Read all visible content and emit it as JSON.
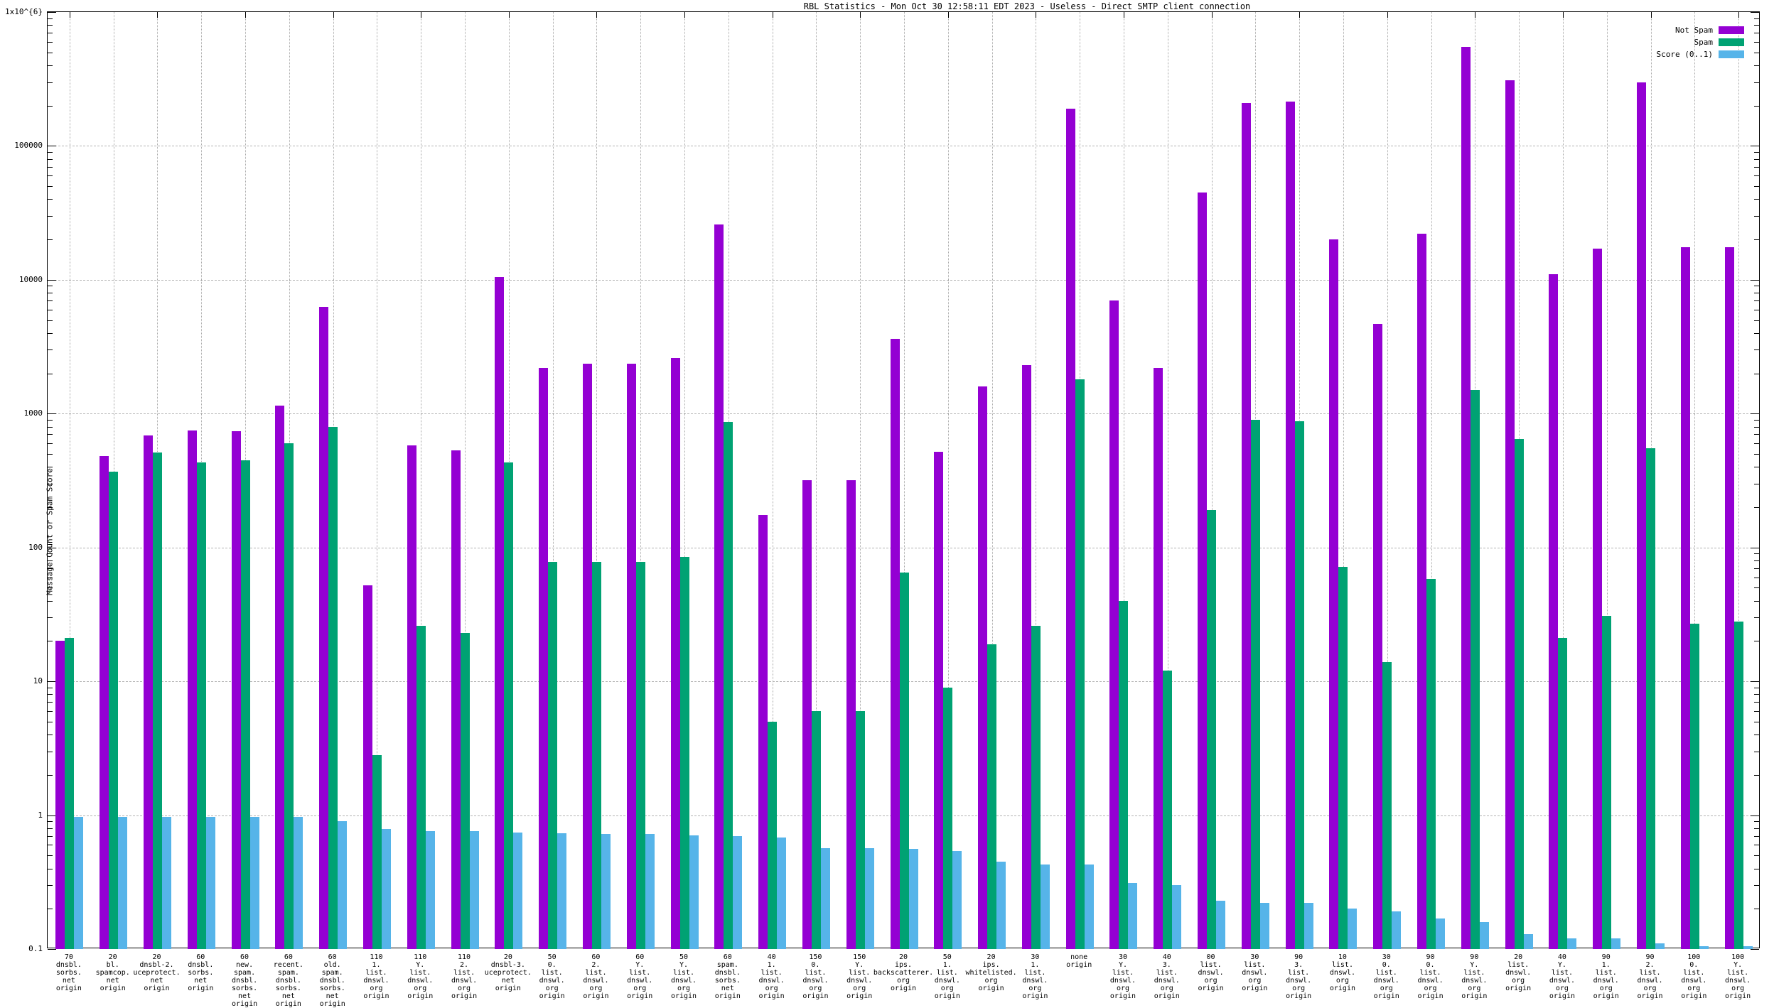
{
  "title": "RBL Statistics - Mon Oct 30 12:58:11 EDT 2023 - Useless - Direct SMTP client connection",
  "y_axis": {
    "label": "Message Count or Spam Score",
    "scale": "log",
    "min": 0.1,
    "max": 1000000,
    "tick_labels": [
      "0.1",
      "1",
      "10",
      "100",
      "1000",
      "10000",
      "100000",
      "1x10^{6}"
    ]
  },
  "legend": {
    "position": "top-right",
    "entries": [
      {
        "label": "Not Spam",
        "color": "#9400d3"
      },
      {
        "label": "Spam",
        "color": "#00a273"
      },
      {
        "label": "Score (0..1)",
        "color": "#56b4e9"
      }
    ]
  },
  "chart_data": {
    "type": "bar",
    "title": "RBL Statistics - Mon Oct 30 12:58:11 EDT 2023 - Useless - Direct SMTP client connection",
    "xlabel": "",
    "ylabel": "Message Count or Spam Score",
    "yscale": "log",
    "ylim": [
      0.1,
      1000000
    ],
    "grid": true,
    "legend_position": "top-right",
    "categories": [
      [
        "70",
        "dnsbl.",
        "sorbs.",
        "net",
        "origin"
      ],
      [
        "20",
        "bl.",
        "spamcop.",
        "net",
        "origin"
      ],
      [
        "20",
        "dnsbl-2.",
        "uceprotect.",
        "net",
        "origin"
      ],
      [
        "60",
        "dnsbl.",
        "sorbs.",
        "net",
        "origin"
      ],
      [
        "60",
        "new.",
        "spam.",
        "dnsbl.",
        "sorbs.",
        "net",
        "origin"
      ],
      [
        "60",
        "recent.",
        "spam.",
        "dnsbl.",
        "sorbs.",
        "net",
        "origin"
      ],
      [
        "60",
        "old.",
        "spam.",
        "dnsbl.",
        "sorbs.",
        "net",
        "origin"
      ],
      [
        "110",
        "1.",
        "list.",
        "dnswl.",
        "org",
        "origin"
      ],
      [
        "110",
        "Y.",
        "list.",
        "dnswl.",
        "org",
        "origin"
      ],
      [
        "110",
        "2.",
        "list.",
        "dnswl.",
        "org",
        "origin"
      ],
      [
        "20",
        "dnsbl-3.",
        "uceprotect.",
        "net",
        "origin"
      ],
      [
        "50",
        "0.",
        "list.",
        "dnswl.",
        "org",
        "origin"
      ],
      [
        "60",
        "2.",
        "list.",
        "dnswl.",
        "org",
        "origin"
      ],
      [
        "60",
        "Y.",
        "list.",
        "dnswl.",
        "org",
        "origin"
      ],
      [
        "50",
        "Y.",
        "list.",
        "dnswl.",
        "org",
        "origin"
      ],
      [
        "60",
        "spam.",
        "dnsbl.",
        "sorbs.",
        "net",
        "origin"
      ],
      [
        "40",
        "1.",
        "list.",
        "dnswl.",
        "org",
        "origin"
      ],
      [
        "150",
        "0.",
        "list.",
        "dnswl.",
        "org",
        "origin"
      ],
      [
        "150",
        "Y.",
        "list.",
        "dnswl.",
        "org",
        "origin"
      ],
      [
        "20",
        "ips.",
        "backscatterer.",
        "org",
        "origin"
      ],
      [
        "50",
        "1.",
        "list.",
        "dnswl.",
        "org",
        "origin"
      ],
      [
        "20",
        "ips.",
        "whitelisted.",
        "org",
        "origin"
      ],
      [
        "30",
        "1.",
        "list.",
        "dnswl.",
        "org",
        "origin"
      ],
      [
        "none",
        "origin"
      ],
      [
        "30",
        "Y.",
        "list.",
        "dnswl.",
        "org",
        "origin"
      ],
      [
        "40",
        "3.",
        "list.",
        "dnswl.",
        "org",
        "origin"
      ],
      [
        "00",
        "list.",
        "dnswl.",
        "org",
        "origin"
      ],
      [
        "30",
        "list.",
        "dnswl.",
        "org",
        "origin"
      ],
      [
        "90",
        "3.",
        "list.",
        "dnswl.",
        "org",
        "origin"
      ],
      [
        "10",
        "list.",
        "dnswl.",
        "org",
        "origin"
      ],
      [
        "30",
        "0.",
        "list.",
        "dnswl.",
        "org",
        "origin"
      ],
      [
        "90",
        "0.",
        "list.",
        "dnswl.",
        "org",
        "origin"
      ],
      [
        "90",
        "Y.",
        "list.",
        "dnswl.",
        "org",
        "origin"
      ],
      [
        "20",
        "list.",
        "dnswl.",
        "org",
        "origin"
      ],
      [
        "40",
        "Y.",
        "list.",
        "dnswl.",
        "org",
        "origin"
      ],
      [
        "90",
        "1.",
        "list.",
        "dnswl.",
        "org",
        "origin"
      ],
      [
        "90",
        "2.",
        "list.",
        "dnswl.",
        "org",
        "origin"
      ],
      [
        "100",
        "0.",
        "list.",
        "dnswl.",
        "org",
        "origin"
      ],
      [
        "100",
        "Y.",
        "list.",
        "dnswl.",
        "org",
        "origin"
      ]
    ],
    "series": [
      {
        "name": "Not Spam",
        "color": "#9400d3",
        "values": [
          20,
          480,
          690,
          750,
          740,
          1150,
          6300,
          52,
          580,
          530,
          10500,
          2200,
          2350,
          2350,
          2600,
          26000,
          175,
          320,
          320,
          3600,
          520,
          1600,
          2300,
          190000,
          7000,
          2200,
          45000,
          210000,
          215000,
          20000,
          4700,
          22000,
          550000,
          310000,
          11000,
          17000,
          300000,
          17500,
          17500
        ]
      },
      {
        "name": "Spam",
        "color": "#00a273",
        "values": [
          21,
          370,
          510,
          430,
          450,
          600,
          800,
          2.8,
          26,
          23,
          430,
          78,
          78,
          78,
          85,
          870,
          5,
          6,
          6,
          65,
          9,
          19,
          26,
          1800,
          40,
          12,
          190,
          900,
          880,
          72,
          14,
          58,
          1500,
          650,
          21,
          31,
          550,
          27,
          28
        ]
      },
      {
        "name": "Score (0..1)",
        "color": "#56b4e9",
        "values": [
          0.97,
          0.97,
          0.97,
          0.97,
          0.97,
          0.97,
          0.9,
          0.79,
          0.76,
          0.76,
          0.74,
          0.73,
          0.72,
          0.72,
          0.71,
          0.7,
          0.68,
          0.57,
          0.57,
          0.56,
          0.54,
          0.45,
          0.43,
          0.43,
          0.31,
          0.3,
          0.23,
          0.22,
          0.22,
          0.2,
          0.19,
          0.17,
          0.16,
          0.13,
          0.12,
          0.12,
          0.11,
          0.105,
          0.105
        ]
      }
    ]
  }
}
